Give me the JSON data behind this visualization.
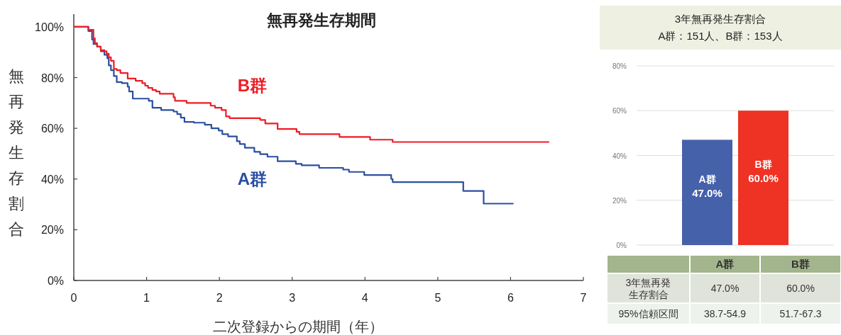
{
  "chart_data": [
    {
      "type": "step",
      "title": "無再発生存期間",
      "xlabel": "二次登録からの期間（年）",
      "ylabel": "無再発生存割合",
      "xlim": [
        0,
        7
      ],
      "xticks": [
        0,
        1,
        2,
        3,
        4,
        5,
        6,
        7
      ],
      "ylim": [
        0,
        105
      ],
      "yticks": [
        {
          "value": 0,
          "label": "0%"
        },
        {
          "value": 20,
          "label": "20%"
        },
        {
          "value": 40,
          "label": "40%"
        },
        {
          "value": 60,
          "label": "60%"
        },
        {
          "value": 80,
          "label": "80%"
        },
        {
          "value": 100,
          "label": "100%"
        }
      ],
      "series": [
        {
          "name": "A群",
          "color": "#2a4fa0",
          "x": [
            0,
            0.2,
            0.25,
            0.27,
            0.32,
            0.37,
            0.42,
            0.46,
            0.48,
            0.51,
            0.55,
            0.59,
            0.66,
            0.74,
            0.76,
            0.81,
            1.03,
            1.08,
            1.2,
            1.37,
            1.42,
            1.47,
            1.52,
            1.65,
            1.8,
            1.89,
            1.99,
            2.04,
            2.12,
            2.24,
            2.28,
            2.35,
            2.48,
            2.56,
            2.66,
            2.8,
            3.05,
            3.13,
            3.37,
            3.7,
            3.78,
            3.99,
            4.36,
            4.38,
            5.35,
            5.63,
            6.04
          ],
          "values": [
            100,
            98.3,
            95,
            93.2,
            92.2,
            90.4,
            89,
            87.6,
            84.8,
            82.9,
            80.6,
            78.2,
            77.8,
            76.4,
            74.5,
            71.7,
            70.8,
            68.1,
            67.2,
            66.6,
            65.6,
            64.2,
            62.5,
            62.2,
            61.4,
            60,
            59.1,
            57.7,
            56.8,
            54.9,
            53.8,
            52.3,
            50.7,
            49.8,
            48.8,
            47,
            46,
            45.4,
            44.4,
            43.7,
            42.8,
            41.6,
            40,
            38.8,
            35.3,
            30.3,
            30.3
          ]
        },
        {
          "name": "B群",
          "color": "#ee1c25",
          "x": [
            0,
            0.2,
            0.27,
            0.29,
            0.32,
            0.37,
            0.42,
            0.45,
            0.48,
            0.51,
            0.55,
            0.59,
            0.64,
            0.74,
            0.85,
            0.94,
            0.98,
            1.02,
            1.08,
            1.13,
            1.18,
            1.37,
            1.39,
            1.55,
            1.88,
            1.94,
            2.03,
            2.09,
            2.14,
            2.56,
            2.63,
            2.8,
            3.06,
            3.1,
            3.65,
            4.07,
            4.38,
            6.53
          ],
          "values": [
            100,
            98.8,
            95.5,
            93.6,
            92.2,
            90.8,
            90.4,
            89.4,
            88,
            86.6,
            83.4,
            82.9,
            81.8,
            79.6,
            78.7,
            77.8,
            76.8,
            75.9,
            75.1,
            74.5,
            73.6,
            72.2,
            70.8,
            70,
            68.9,
            68.1,
            67.2,
            64.7,
            64,
            63.3,
            61.9,
            59.7,
            58.6,
            57.7,
            56.6,
            55.5,
            54.6,
            54.6
          ]
        }
      ]
    },
    {
      "type": "bar",
      "title": "3年無再発生存割合",
      "subtitle": "A群：151人、B群：153人",
      "categories": [
        "A群",
        "B群"
      ],
      "values": [
        47.0,
        60.0
      ],
      "colors": [
        "#4561aa",
        "#ee3224"
      ],
      "value_labels": [
        "47.0%",
        "60.0%"
      ],
      "ylim": [
        0,
        80
      ],
      "yticks": [
        {
          "value": 0,
          "label": "0%"
        },
        {
          "value": 20,
          "label": "20%"
        },
        {
          "value": 40,
          "label": "40%"
        },
        {
          "value": 60,
          "label": "60%"
        },
        {
          "value": 80,
          "label": "80%"
        }
      ],
      "grid": "y",
      "annotations": [
        "3年無再発生存割合",
        "95%信頼区間",
        "38.7-54.9",
        "51.7-67.3"
      ]
    }
  ]
}
